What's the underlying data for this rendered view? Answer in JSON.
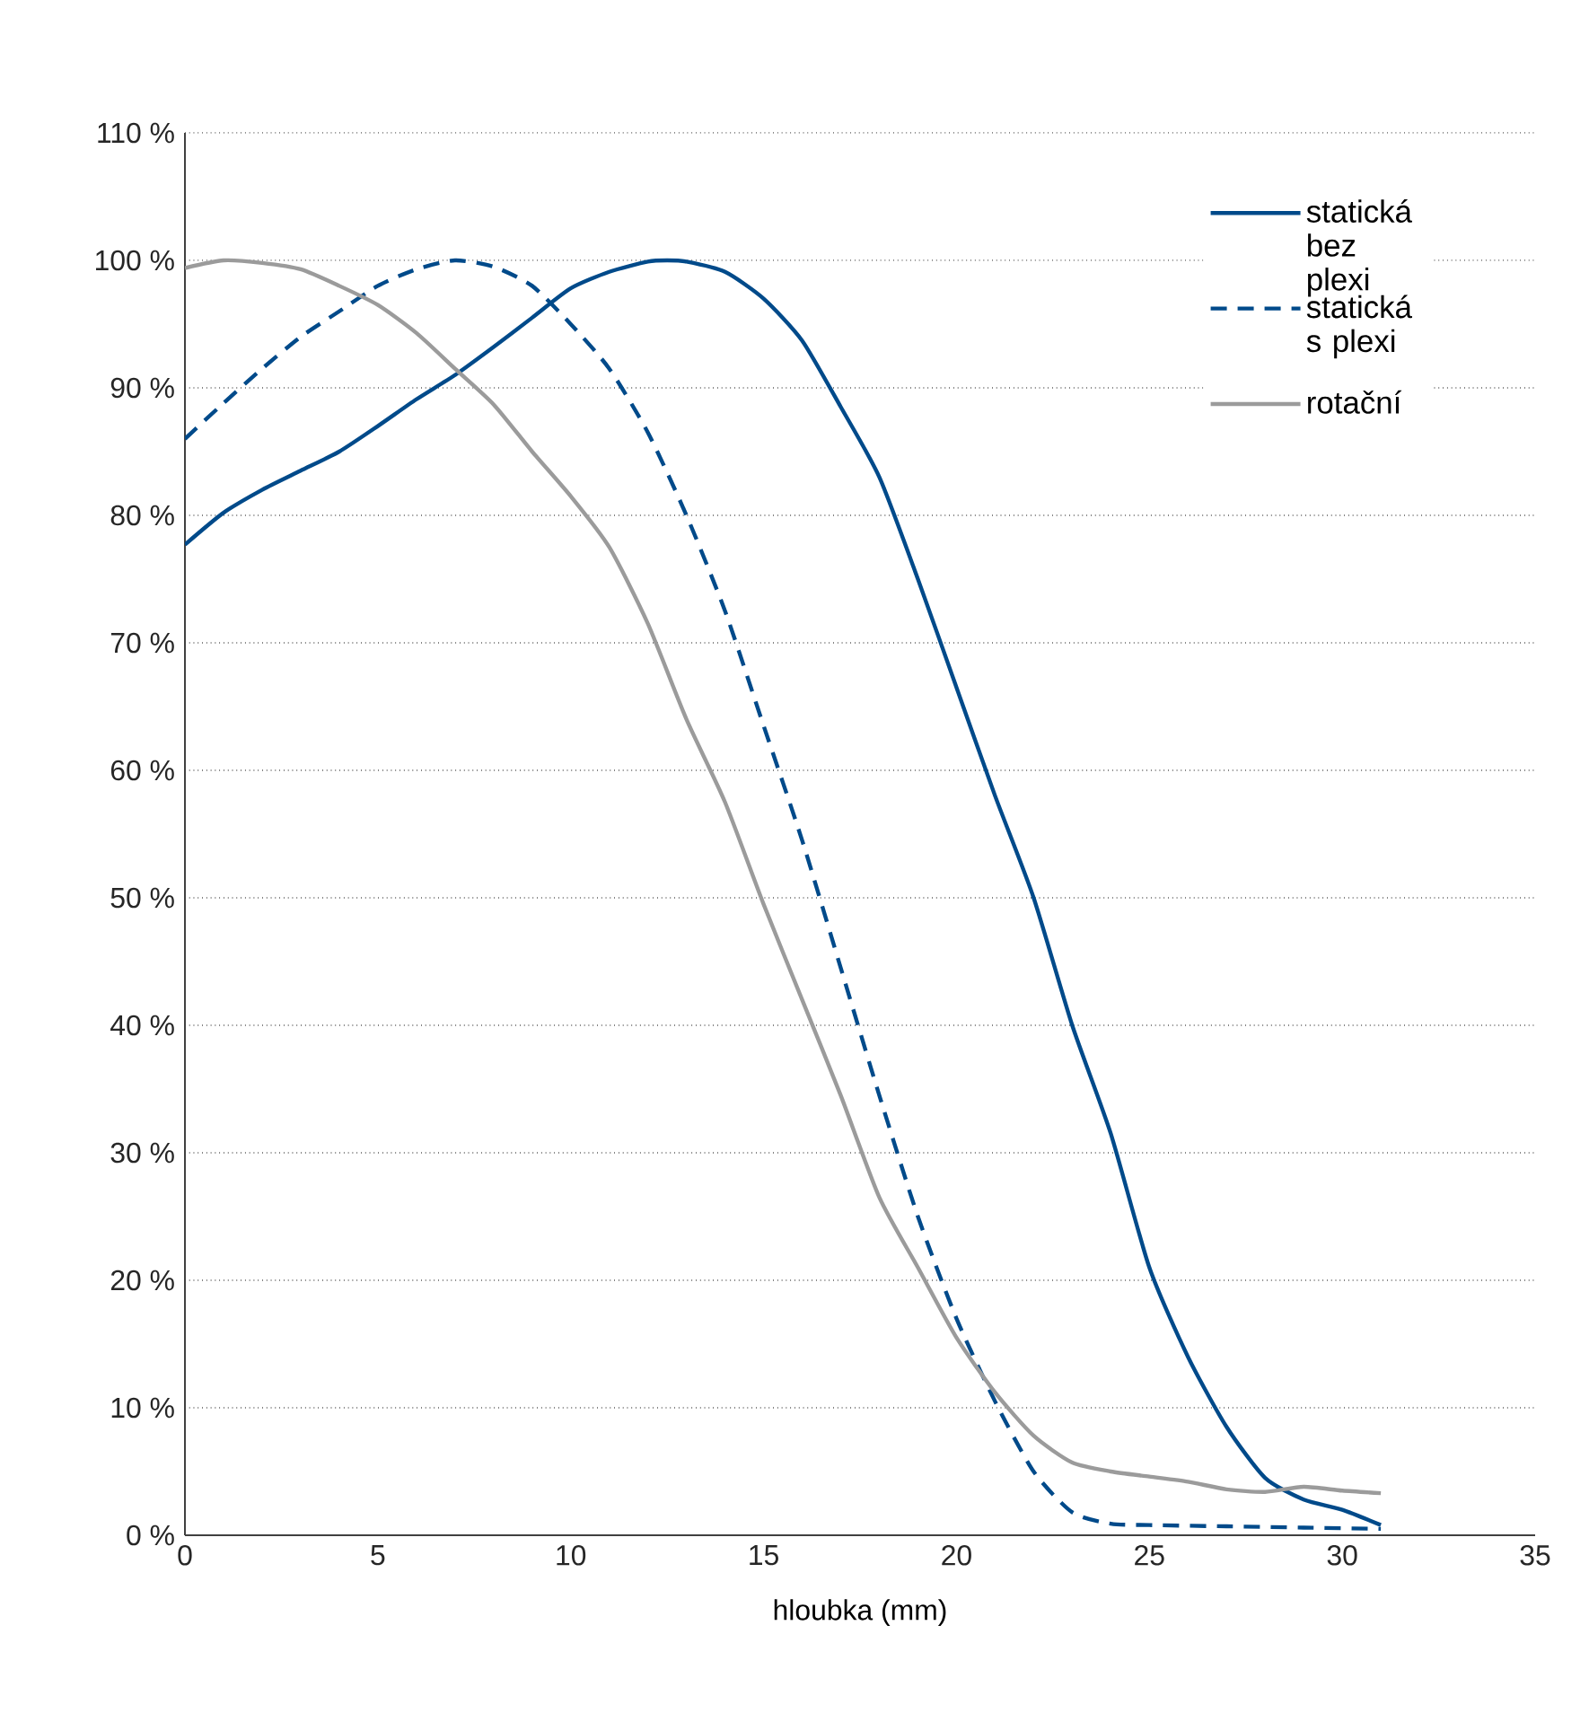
{
  "chart_data": {
    "type": "line",
    "xlabel": "hloubka (mm)",
    "xlim": [
      0,
      35
    ],
    "xticks": [
      0,
      5,
      10,
      15,
      20,
      25,
      30,
      35
    ],
    "ylim": [
      0,
      110
    ],
    "yticks": [
      {
        "value": 0,
        "label": "0 %"
      },
      {
        "value": 10,
        "label": "10 %"
      },
      {
        "value": 20,
        "label": "20 %"
      },
      {
        "value": 30,
        "label": "30 %"
      },
      {
        "value": 40,
        "label": "40 %"
      },
      {
        "value": 50,
        "label": "50 %"
      },
      {
        "value": 60,
        "label": "60 %"
      },
      {
        "value": 70,
        "label": "70 %"
      },
      {
        "value": 80,
        "label": "80 %"
      },
      {
        "value": 90,
        "label": "90 %"
      },
      {
        "value": 100,
        "label": "100 %"
      },
      {
        "value": 110,
        "label": "110 %"
      }
    ],
    "grid": "y",
    "legend": "top right",
    "marker": "none",
    "series": [
      {
        "name": "statická bez plexi",
        "color": "#004a8a",
        "line_style": "solid",
        "x": [
          0,
          1,
          2,
          3,
          4,
          5,
          6,
          7,
          8,
          9,
          10,
          11,
          12,
          12.5,
          13,
          14,
          15,
          16,
          17,
          18,
          19,
          20,
          21,
          22,
          23,
          24,
          25,
          26,
          27,
          28,
          29,
          30,
          31
        ],
        "values": [
          77.7,
          80.2,
          82,
          83.5,
          85,
          87,
          89.1,
          91,
          93.2,
          95.5,
          97.8,
          99.1,
          99.9,
          100,
          99.9,
          99.1,
          97,
          93.7,
          88.5,
          83,
          75,
          66.5,
          58,
          50,
          40,
          31.5,
          21,
          14,
          8.5,
          4.5,
          2.8,
          2,
          0.8
        ]
      },
      {
        "name": "statická s plexi",
        "color": "#004a8a",
        "line_style": "dashed",
        "x": [
          0,
          1,
          2,
          3,
          4,
          5,
          6,
          7,
          8,
          9,
          10,
          11,
          12,
          13,
          14,
          15,
          16,
          17,
          18,
          19,
          20,
          21,
          22,
          23,
          24,
          25,
          27,
          29,
          31
        ],
        "values": [
          86,
          88.8,
          91.5,
          94,
          96,
          98,
          99.3,
          100,
          99.5,
          98,
          95,
          91.5,
          86.5,
          80,
          72.5,
          63.5,
          54.5,
          44.5,
          34.5,
          25,
          17,
          10.5,
          5,
          1.8,
          0.9,
          0.8,
          0.7,
          0.6,
          0.5
        ]
      },
      {
        "name": "rotační",
        "color": "#9b9b9b",
        "line_style": "solid",
        "x": [
          0,
          1,
          2,
          3,
          4,
          5,
          6,
          7,
          8,
          9,
          10,
          11,
          12,
          13,
          14,
          15,
          16,
          17,
          18,
          19,
          20,
          21,
          22,
          23,
          24,
          25,
          26,
          27,
          28,
          29,
          30,
          31
        ],
        "values": [
          99.4,
          100,
          99.8,
          99.3,
          98,
          96.5,
          94.3,
          91.5,
          88.7,
          85,
          81.5,
          77.5,
          71.5,
          64,
          57.5,
          49.5,
          42,
          34.5,
          26.5,
          21,
          15.5,
          11.2,
          7.8,
          5.7,
          5,
          4.6,
          4.2,
          3.6,
          3.4,
          3.8,
          3.5,
          3.3
        ]
      }
    ]
  }
}
